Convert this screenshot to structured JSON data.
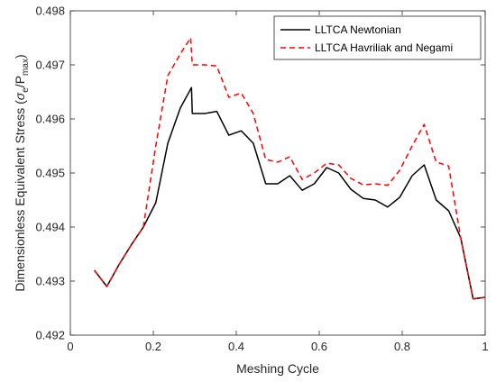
{
  "chart_data": {
    "type": "line",
    "xlabel": "Meshing Cycle",
    "ylabel_main": "Dimensionless Equivalent Stress (",
    "ylabel_sigma": "σ",
    "ylabel_e": "e",
    "ylabel_slash_p": "/P",
    "ylabel_max": "max",
    "ylabel_close": ")",
    "xlim": [
      0,
      1
    ],
    "ylim": [
      0.492,
      0.498
    ],
    "xticks": [
      0,
      0.2,
      0.4,
      0.6,
      0.8,
      1
    ],
    "xtick_labels": [
      "0",
      "0.2",
      "0.4",
      "0.6",
      "0.8",
      "1"
    ],
    "yticks": [
      0.492,
      0.493,
      0.494,
      0.495,
      0.496,
      0.497,
      0.498
    ],
    "ytick_labels": [
      "0.492",
      "0.493",
      "0.494",
      "0.495",
      "0.496",
      "0.497",
      "0.498"
    ],
    "grid": false,
    "legend_position": "top-right",
    "series": [
      {
        "name": "LLTCA Newtonian",
        "color": "#000000",
        "dash": "solid",
        "x": [
          0.058,
          0.088,
          0.117,
          0.147,
          0.176,
          0.206,
          0.235,
          0.265,
          0.292,
          0.294,
          0.324,
          0.353,
          0.382,
          0.412,
          0.441,
          0.471,
          0.5,
          0.529,
          0.559,
          0.588,
          0.618,
          0.647,
          0.676,
          0.706,
          0.735,
          0.765,
          0.794,
          0.824,
          0.853,
          0.882,
          0.912,
          0.941,
          0.971,
          1.0
        ],
        "y": [
          0.4932,
          0.4929,
          0.4933,
          0.49367,
          0.494,
          0.49445,
          0.49555,
          0.4962,
          0.49658,
          0.4961,
          0.4961,
          0.49614,
          0.4957,
          0.49578,
          0.49555,
          0.4948,
          0.4948,
          0.49495,
          0.49468,
          0.4948,
          0.4951,
          0.495,
          0.4947,
          0.49453,
          0.4945,
          0.49437,
          0.49455,
          0.49495,
          0.49515,
          0.4945,
          0.4943,
          0.4938,
          0.49267,
          0.4927
        ]
      },
      {
        "name": "LLTCA Havriliak and Negami",
        "color": "#ff0000",
        "dash": "dashed",
        "x": [
          0.058,
          0.088,
          0.117,
          0.147,
          0.176,
          0.206,
          0.235,
          0.265,
          0.29,
          0.294,
          0.324,
          0.353,
          0.382,
          0.412,
          0.441,
          0.471,
          0.5,
          0.529,
          0.559,
          0.588,
          0.618,
          0.647,
          0.676,
          0.706,
          0.735,
          0.765,
          0.794,
          0.824,
          0.853,
          0.882,
          0.912,
          0.941,
          0.971,
          1.0
        ],
        "y": [
          0.4932,
          0.4929,
          0.4933,
          0.49367,
          0.494,
          0.4955,
          0.4968,
          0.4972,
          0.4975,
          0.497,
          0.497,
          0.49698,
          0.4964,
          0.49648,
          0.4961,
          0.49525,
          0.4952,
          0.4953,
          0.49488,
          0.495,
          0.49518,
          0.49515,
          0.4949,
          0.49478,
          0.4948,
          0.49477,
          0.49505,
          0.4955,
          0.4959,
          0.4952,
          0.49513,
          0.4938,
          0.49267,
          0.4927
        ]
      }
    ]
  }
}
